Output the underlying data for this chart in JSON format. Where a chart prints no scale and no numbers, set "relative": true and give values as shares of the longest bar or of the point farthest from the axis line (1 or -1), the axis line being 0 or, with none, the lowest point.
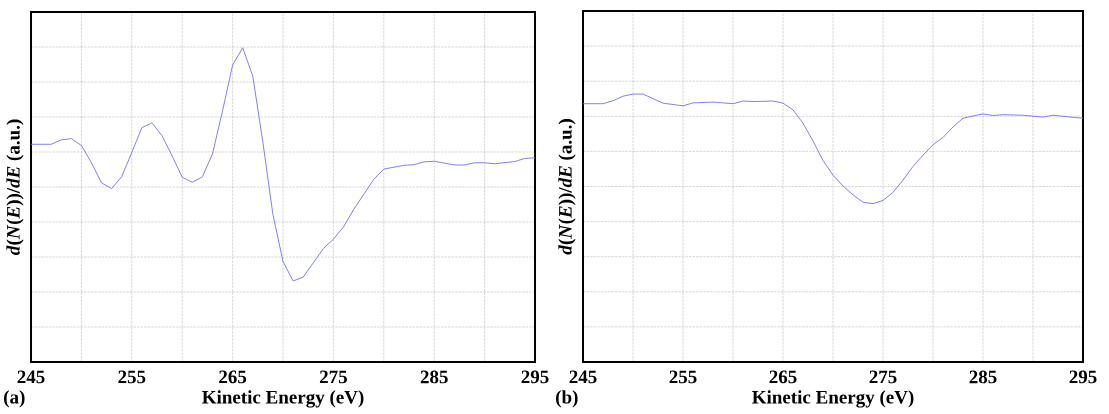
{
  "chart_data": [
    {
      "type": "line",
      "relative": true,
      "grid": true,
      "color": "#7373f2",
      "xlabel": "Kinetic Energy (eV)",
      "ylabel": "*d*(*N*(*E*))/*dE*  (a.u.)",
      "annotations": [
        "(a)"
      ],
      "xlim": [
        245,
        295
      ],
      "xticks": [
        245,
        {
          "value": 250,
          "label": null
        },
        255,
        {
          "value": 260,
          "label": null
        },
        265,
        {
          "value": 270,
          "label": null
        },
        275,
        {
          "value": 280,
          "label": null
        },
        285,
        {
          "value": 290,
          "label": null
        },
        295
      ],
      "x": [
        245,
        247,
        248,
        249,
        250,
        251,
        252,
        253,
        254,
        255,
        256,
        257,
        258,
        259,
        260,
        261,
        262,
        263,
        264,
        265,
        266,
        267,
        268,
        269,
        270,
        271,
        272,
        274,
        275,
        276,
        277,
        279,
        280,
        282,
        283,
        284,
        285,
        287,
        288,
        289,
        290,
        291,
        293,
        294,
        295
      ],
      "values": [
        0.693,
        0.693,
        0.707,
        0.711,
        0.689,
        0.634,
        0.57,
        0.552,
        0.59,
        0.667,
        0.746,
        0.761,
        0.72,
        0.656,
        0.588,
        0.572,
        0.589,
        0.662,
        0.799,
        0.945,
        1,
        0.91,
        0.7,
        0.469,
        0.32,
        0.258,
        0.27,
        0.361,
        0.391,
        0.43,
        0.485,
        0.581,
        0.614,
        0.626,
        0.628,
        0.637,
        0.639,
        0.627,
        0.627,
        0.634,
        0.634,
        0.631,
        0.638,
        0.648,
        0.65
      ]
    },
    {
      "type": "line",
      "relative": true,
      "grid": true,
      "color": "#7373f2",
      "xlabel": "Kinetic Energy (eV)",
      "ylabel": "*d*(*N*(*E*))/*dE*  (a.u.)",
      "annotations": [
        "(b)"
      ],
      "xlim": [
        245,
        295
      ],
      "xticks": [
        245,
        {
          "value": 250,
          "label": null
        },
        255,
        {
          "value": 260,
          "label": null
        },
        265,
        {
          "value": 270,
          "label": null
        },
        275,
        {
          "value": 280,
          "label": null
        },
        285,
        {
          "value": 290,
          "label": null
        },
        295
      ],
      "x": [
        245,
        247,
        248,
        249,
        250,
        251,
        252,
        253,
        255,
        256,
        258,
        260,
        261,
        262,
        264,
        265,
        266,
        267,
        268,
        269,
        270,
        271,
        272,
        273,
        274,
        275,
        276,
        277,
        278,
        279,
        280,
        281,
        282,
        283,
        285,
        286,
        287,
        289,
        291,
        292,
        294,
        295
      ],
      "values": [
        0.964,
        0.964,
        0.975,
        0.992,
        1,
        1,
        0.983,
        0.966,
        0.956,
        0.967,
        0.97,
        0.964,
        0.974,
        0.972,
        0.974,
        0.966,
        0.941,
        0.891,
        0.825,
        0.752,
        0.697,
        0.657,
        0.624,
        0.596,
        0.591,
        0.603,
        0.633,
        0.679,
        0.73,
        0.772,
        0.811,
        0.838,
        0.877,
        0.91,
        0.926,
        0.92,
        0.923,
        0.921,
        0.914,
        0.921,
        0.913,
        0.91
      ]
    }
  ]
}
